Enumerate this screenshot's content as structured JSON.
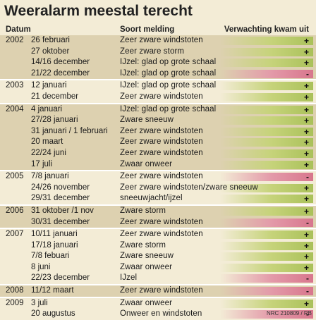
{
  "title": "Weeralarm meestal terecht",
  "credit": "NRC 210809 / RB",
  "chart_data": {
    "type": "table",
    "columns": [
      "Datum",
      "Soort melding",
      "Verwachting kwam uit"
    ],
    "groups": [
      {
        "year": "2002",
        "rows": [
          {
            "date": "26 februari",
            "message": "Zeer zware windstoten",
            "outcome": "+"
          },
          {
            "date": "27 oktober",
            "message": "Zeer zware storm",
            "outcome": "+"
          },
          {
            "date": "14/16 december",
            "message": "IJzel: glad op grote schaal",
            "outcome": "+"
          },
          {
            "date": "21/22 december",
            "message": "IJzel: glad op grote schaal",
            "outcome": "-"
          }
        ]
      },
      {
        "year": "2003",
        "rows": [
          {
            "date": "12 januari",
            "message": "IJzel: glad op grote schaal",
            "outcome": "+"
          },
          {
            "date": "21 december",
            "message": "Zeer zware windstoten",
            "outcome": "+"
          }
        ]
      },
      {
        "year": "2004",
        "rows": [
          {
            "date": "4 januari",
            "message": "IJzel: glad op grote schaal",
            "outcome": "+"
          },
          {
            "date": "27/28 januari",
            "message": "Zware sneeuw",
            "outcome": "+"
          },
          {
            "date": "31 januari / 1 februari",
            "message": "Zeer zware windstoten",
            "outcome": "+"
          },
          {
            "date": "20 maart",
            "message": "Zeer zware windstoten",
            "outcome": "+"
          },
          {
            "date": "22/24 juni",
            "message": "Zeer zware windstoten",
            "outcome": "+"
          },
          {
            "date": "17 juli",
            "message": "Zwaar onweer",
            "outcome": "+"
          }
        ]
      },
      {
        "year": "2005",
        "rows": [
          {
            "date": "7/8 januari",
            "message": "Zeer zware windstoten",
            "outcome": "-"
          },
          {
            "date": "24/26 november",
            "message": "Zeer zware windstoten/zware sneeuw",
            "outcome": "+"
          },
          {
            "date": "29/31 december",
            "message": "sneeuwjacht/ijzel",
            "outcome": "+"
          }
        ]
      },
      {
        "year": "2006",
        "rows": [
          {
            "date": "31 oktober /1 nov",
            "message": "Zware storm",
            "outcome": "+"
          },
          {
            "date": "30/31 december",
            "message": "Zeer zware windstoten",
            "outcome": "-"
          }
        ]
      },
      {
        "year": "2007",
        "rows": [
          {
            "date": "10/11 januari",
            "message": "Zeer zware windstoten",
            "outcome": "+"
          },
          {
            "date": "17/18 januari",
            "message": "Zware storm",
            "outcome": "+"
          },
          {
            "date": "7/8 febuari",
            "message": "Zware sneeuw",
            "outcome": "+"
          },
          {
            "date": "8 juni",
            "message": "Zwaar onweer",
            "outcome": "+"
          },
          {
            "date": "22/23 december",
            "message": "IJzel",
            "outcome": "-"
          }
        ]
      },
      {
        "year": "2008",
        "rows": [
          {
            "date": "11/12 maart",
            "message": "Zeer zware windstoten",
            "outcome": "-"
          }
        ]
      },
      {
        "year": "2009",
        "rows": [
          {
            "date": "3 juli",
            "message": "Zwaar onweer",
            "outcome": "+"
          },
          {
            "date": "20 augustus",
            "message": "Onweer en windstoten",
            "outcome": "-"
          }
        ]
      }
    ]
  }
}
